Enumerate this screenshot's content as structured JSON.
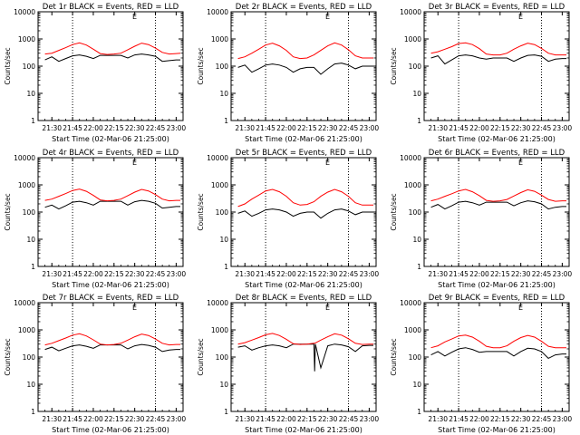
{
  "colors": {
    "events": "#000000",
    "lld": "#ff0000",
    "axes": "#000000",
    "background": "#ffffff"
  },
  "chart_data": [
    {
      "type": "line",
      "title": "Det 1r BLACK = Events, RED = LLD",
      "xlabel": "Start Time (02-Mar-06 21:25:00)",
      "ylabel": "Counts/sec",
      "x_ticks": [
        "21:30",
        "21:45",
        "22:00",
        "22:15",
        "22:30",
        "22:45",
        "23:00"
      ],
      "x_range_min": [
        -5,
        100
      ],
      "y_ticks": [
        "1",
        "10",
        "100",
        "1000",
        "10000"
      ],
      "y_log": true,
      "ylim": [
        1,
        10000
      ],
      "vlines_min": [
        20,
        80
      ],
      "corner_mark": "E",
      "x": [
        0,
        5,
        10,
        15,
        20,
        25,
        30,
        35,
        40,
        45,
        50,
        55,
        60,
        65,
        70,
        75,
        80,
        85,
        90,
        95,
        98
      ],
      "series": [
        {
          "name": "Events",
          "color": "#000000",
          "values": [
            170,
            220,
            150,
            190,
            240,
            260,
            230,
            190,
            250,
            250,
            250,
            250,
            200,
            260,
            280,
            260,
            230,
            150,
            160,
            170,
            170
          ]
        },
        {
          "name": "LLD",
          "color": "#ff0000",
          "values": [
            280,
            300,
            380,
            480,
            620,
            720,
            600,
            420,
            290,
            270,
            280,
            300,
            400,
            540,
            700,
            620,
            460,
            320,
            280,
            290,
            300
          ]
        }
      ]
    },
    {
      "type": "line",
      "title": "Det 2r BLACK = Events, RED = LLD",
      "xlabel": "Start Time (02-Mar-06 21:25:00)",
      "ylabel": "Counts/sec",
      "x_ticks": [
        "21:30",
        "21:45",
        "22:00",
        "22:15",
        "22:30",
        "22:45",
        "23:00"
      ],
      "x_range_min": [
        -5,
        100
      ],
      "y_ticks": [
        "1",
        "10",
        "100",
        "1000",
        "10000"
      ],
      "y_log": true,
      "ylim": [
        1,
        10000
      ],
      "vlines_min": [
        20,
        80
      ],
      "corner_mark": "E",
      "x": [
        0,
        5,
        10,
        15,
        20,
        25,
        30,
        35,
        40,
        45,
        50,
        55,
        60,
        65,
        70,
        75,
        80,
        85,
        90,
        95,
        98
      ],
      "series": [
        {
          "name": "Events",
          "color": "#000000",
          "values": [
            90,
            110,
            60,
            80,
            110,
            120,
            110,
            90,
            60,
            80,
            90,
            90,
            50,
            80,
            120,
            130,
            110,
            80,
            100,
            100,
            100
          ]
        },
        {
          "name": "LLD",
          "color": "#ff0000",
          "values": [
            190,
            220,
            300,
            420,
            600,
            700,
            560,
            380,
            220,
            190,
            200,
            260,
            380,
            560,
            720,
            600,
            400,
            240,
            200,
            200,
            200
          ]
        }
      ]
    },
    {
      "type": "line",
      "title": "Det 3r BLACK = Events, RED = LLD",
      "xlabel": "Start Time (02-Mar-06 21:25:00)",
      "ylabel": "Counts/sec",
      "x_ticks": [
        "21:30",
        "21:45",
        "22:00",
        "22:15",
        "22:30",
        "22:45",
        "23:00"
      ],
      "x_range_min": [
        -5,
        100
      ],
      "y_ticks": [
        "1",
        "10",
        "100",
        "1000",
        "10000"
      ],
      "y_log": true,
      "ylim": [
        1,
        10000
      ],
      "vlines_min": [
        20,
        80
      ],
      "corner_mark": "E",
      "x": [
        0,
        5,
        10,
        15,
        20,
        25,
        30,
        35,
        40,
        45,
        50,
        55,
        60,
        65,
        70,
        75,
        80,
        85,
        90,
        95,
        98
      ],
      "series": [
        {
          "name": "Events",
          "color": "#000000",
          "values": [
            200,
            240,
            120,
            170,
            240,
            260,
            240,
            200,
            180,
            200,
            200,
            200,
            150,
            200,
            250,
            260,
            230,
            150,
            180,
            190,
            190
          ]
        },
        {
          "name": "LLD",
          "color": "#ff0000",
          "values": [
            300,
            340,
            420,
            520,
            680,
            720,
            620,
            440,
            280,
            260,
            260,
            300,
            420,
            560,
            700,
            620,
            450,
            300,
            260,
            260,
            260
          ]
        }
      ]
    },
    {
      "type": "line",
      "title": "Det 4r BLACK = Events, RED = LLD",
      "xlabel": "Start Time (02-Mar-06 21:25:00)",
      "ylabel": "Counts/sec",
      "x_ticks": [
        "21:30",
        "21:45",
        "22:00",
        "22:15",
        "22:30",
        "22:45",
        "23:00"
      ],
      "x_range_min": [
        -5,
        100
      ],
      "y_ticks": [
        "1",
        "10",
        "100",
        "1000",
        "10000"
      ],
      "y_log": true,
      "ylim": [
        1,
        10000
      ],
      "vlines_min": [
        20,
        80
      ],
      "corner_mark": "E",
      "x": [
        0,
        5,
        10,
        15,
        20,
        25,
        30,
        35,
        40,
        45,
        50,
        55,
        60,
        65,
        70,
        75,
        80,
        85,
        90,
        95,
        98
      ],
      "series": [
        {
          "name": "Events",
          "color": "#000000",
          "values": [
            150,
            180,
            130,
            170,
            230,
            250,
            220,
            180,
            250,
            250,
            250,
            250,
            180,
            240,
            270,
            250,
            210,
            140,
            150,
            160,
            160
          ]
        },
        {
          "name": "LLD",
          "color": "#ff0000",
          "values": [
            270,
            300,
            380,
            480,
            620,
            700,
            580,
            410,
            280,
            260,
            270,
            300,
            400,
            540,
            680,
            600,
            440,
            300,
            260,
            270,
            270
          ]
        }
      ]
    },
    {
      "type": "line",
      "title": "Det 5r BLACK = Events, RED = LLD",
      "xlabel": "Start Time (02-Mar-06 21:25:00)",
      "ylabel": "Counts/sec",
      "x_ticks": [
        "21:30",
        "21:45",
        "22:00",
        "22:15",
        "22:30",
        "22:45",
        "23:00"
      ],
      "x_range_min": [
        -5,
        100
      ],
      "y_ticks": [
        "1",
        "10",
        "100",
        "1000",
        "10000"
      ],
      "y_log": true,
      "ylim": [
        1,
        10000
      ],
      "vlines_min": [
        20,
        80
      ],
      "corner_mark": "E",
      "x": [
        0,
        5,
        10,
        15,
        20,
        25,
        30,
        35,
        40,
        45,
        50,
        55,
        60,
        65,
        70,
        75,
        80,
        85,
        90,
        95,
        98
      ],
      "series": [
        {
          "name": "Events",
          "color": "#000000",
          "values": [
            90,
            110,
            70,
            90,
            120,
            130,
            120,
            100,
            70,
            90,
            100,
            100,
            60,
            90,
            120,
            130,
            110,
            80,
            100,
            100,
            100
          ]
        },
        {
          "name": "LLD",
          "color": "#ff0000",
          "values": [
            160,
            200,
            300,
            420,
            600,
            680,
            560,
            380,
            220,
            180,
            190,
            240,
            380,
            540,
            680,
            560,
            380,
            220,
            180,
            180,
            180
          ]
        }
      ]
    },
    {
      "type": "line",
      "title": "Det 6r BLACK = Events, RED = LLD",
      "xlabel": "Start Time (02-Mar-06 21:25:00)",
      "ylabel": "Counts/sec",
      "x_ticks": [
        "21:30",
        "21:45",
        "22:00",
        "22:15",
        "22:30",
        "22:45",
        "23:00"
      ],
      "x_range_min": [
        -5,
        100
      ],
      "y_ticks": [
        "1",
        "10",
        "100",
        "1000",
        "10000"
      ],
      "y_log": true,
      "ylim": [
        1,
        10000
      ],
      "vlines_min": [
        20,
        80
      ],
      "corner_mark": "E",
      "x": [
        0,
        5,
        10,
        15,
        20,
        25,
        30,
        35,
        40,
        45,
        50,
        55,
        60,
        65,
        70,
        75,
        80,
        85,
        90,
        95,
        98
      ],
      "series": [
        {
          "name": "Events",
          "color": "#000000",
          "values": [
            150,
            190,
            130,
            170,
            230,
            250,
            220,
            180,
            230,
            230,
            230,
            230,
            170,
            220,
            260,
            240,
            200,
            130,
            150,
            160,
            160
          ]
        },
        {
          "name": "LLD",
          "color": "#ff0000",
          "values": [
            260,
            300,
            380,
            470,
            600,
            680,
            560,
            400,
            270,
            250,
            260,
            290,
            390,
            520,
            660,
            580,
            420,
            290,
            250,
            260,
            260
          ]
        }
      ]
    },
    {
      "type": "line",
      "title": "Det 7r BLACK = Events, RED = LLD",
      "xlabel": "Start Time (02-Mar-06 21:25:00)",
      "ylabel": "Counts/sec",
      "x_ticks": [
        "21:30",
        "21:45",
        "22:00",
        "22:15",
        "22:30",
        "22:45",
        "23:00"
      ],
      "x_range_min": [
        -5,
        100
      ],
      "y_ticks": [
        "1",
        "10",
        "100",
        "1000",
        "10000"
      ],
      "y_log": true,
      "ylim": [
        1,
        10000
      ],
      "vlines_min": [
        20,
        80
      ],
      "corner_mark": "E",
      "x": [
        0,
        5,
        10,
        15,
        20,
        25,
        30,
        35,
        40,
        45,
        50,
        55,
        60,
        65,
        70,
        75,
        80,
        85,
        90,
        95,
        98
      ],
      "series": [
        {
          "name": "Events",
          "color": "#000000",
          "values": [
            190,
            230,
            170,
            210,
            260,
            280,
            250,
            210,
            280,
            280,
            280,
            280,
            200,
            260,
            290,
            270,
            230,
            160,
            180,
            190,
            190
          ]
        },
        {
          "name": "LLD",
          "color": "#ff0000",
          "values": [
            280,
            320,
            400,
            500,
            640,
            720,
            600,
            430,
            300,
            280,
            290,
            320,
            420,
            560,
            700,
            620,
            460,
            320,
            280,
            290,
            290
          ]
        }
      ]
    },
    {
      "type": "line",
      "title": "Det 8r BLACK = Events, RED = LLD",
      "xlabel": "Start Time (02-Mar-06 21:25:00)",
      "ylabel": "Counts/sec",
      "x_ticks": [
        "21:30",
        "21:45",
        "22:00",
        "22:15",
        "22:30",
        "22:45",
        "23:00"
      ],
      "x_range_min": [
        -5,
        100
      ],
      "y_ticks": [
        "1",
        "10",
        "100",
        "1000",
        "10000"
      ],
      "y_log": true,
      "ylim": [
        1,
        10000
      ],
      "vlines_min": [
        20,
        80
      ],
      "corner_mark": "E",
      "x": [
        0,
        5,
        10,
        15,
        20,
        25,
        30,
        35,
        40,
        45,
        50,
        55,
        55.5,
        56,
        60,
        65,
        70,
        75,
        80,
        85,
        90,
        95,
        98
      ],
      "series": [
        {
          "name": "Events",
          "color": "#000000",
          "values": [
            230,
            260,
            180,
            220,
            260,
            280,
            260,
            220,
            300,
            300,
            300,
            300,
            30,
            300,
            40,
            260,
            300,
            280,
            240,
            160,
            260,
            270,
            270
          ]
        },
        {
          "name": "LLD",
          "color": "#ff0000",
          "values": [
            300,
            340,
            420,
            520,
            660,
            740,
            620,
            450,
            310,
            290,
            300,
            320,
            320,
            330,
            420,
            560,
            720,
            640,
            470,
            320,
            290,
            300,
            300
          ]
        }
      ]
    },
    {
      "type": "line",
      "title": "Det 9r BLACK = Events, RED = LLD",
      "xlabel": "Start Time (02-Mar-06 21:25:00)",
      "ylabel": "Counts/sec",
      "x_ticks": [
        "21:30",
        "21:45",
        "22:00",
        "22:15",
        "22:30",
        "22:45",
        "23:00"
      ],
      "x_range_min": [
        -5,
        100
      ],
      "y_ticks": [
        "1",
        "10",
        "100",
        "1000",
        "10000"
      ],
      "y_log": true,
      "ylim": [
        1,
        10000
      ],
      "vlines_min": [
        20,
        80
      ],
      "corner_mark": "E",
      "x": [
        0,
        5,
        10,
        15,
        20,
        25,
        30,
        35,
        40,
        45,
        50,
        55,
        60,
        65,
        70,
        75,
        80,
        85,
        90,
        95,
        98
      ],
      "series": [
        {
          "name": "Events",
          "color": "#000000",
          "values": [
            120,
            160,
            110,
            150,
            200,
            220,
            190,
            150,
            160,
            160,
            160,
            160,
            110,
            160,
            210,
            200,
            160,
            90,
            120,
            130,
            130
          ]
        },
        {
          "name": "LLD",
          "color": "#ff0000",
          "values": [
            220,
            260,
            360,
            460,
            600,
            640,
            540,
            380,
            250,
            220,
            220,
            260,
            380,
            520,
            620,
            540,
            380,
            250,
            220,
            220,
            220
          ]
        }
      ]
    }
  ]
}
